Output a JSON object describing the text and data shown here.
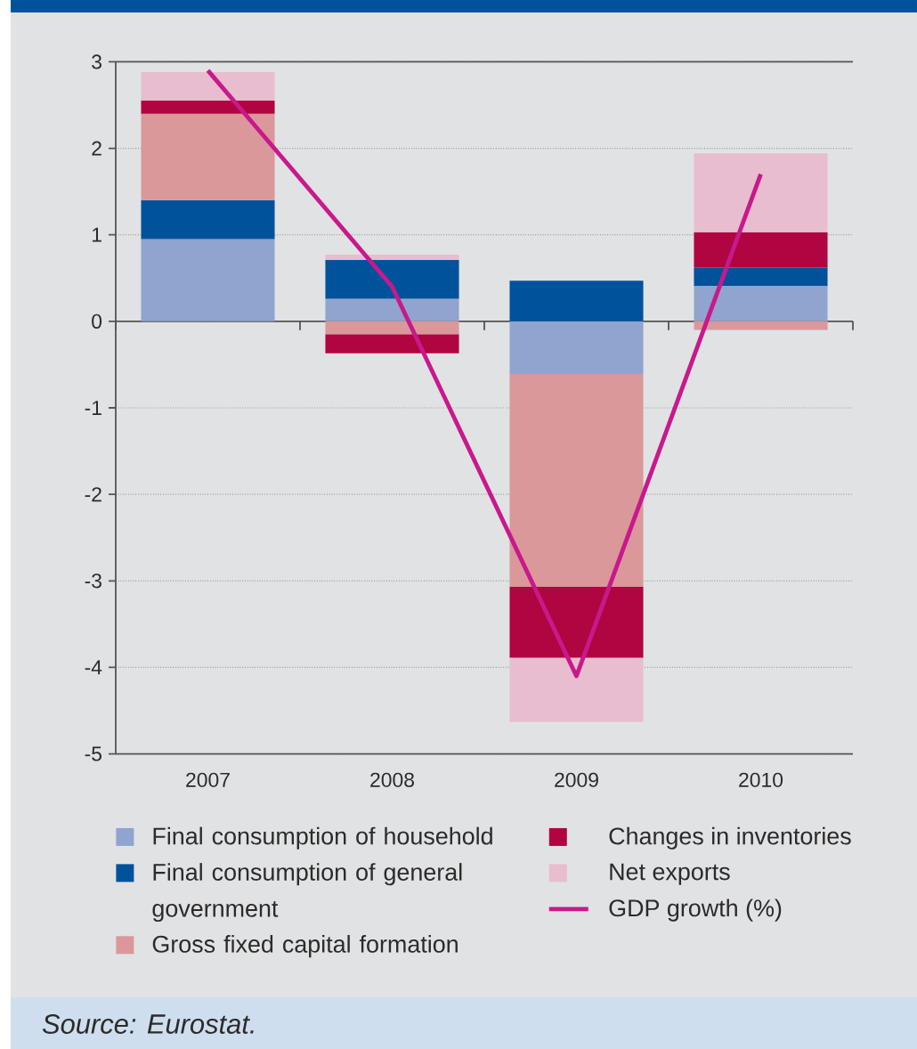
{
  "chart_data": {
    "type": "bar",
    "stacked": true,
    "categories": [
      "2007",
      "2008",
      "2009",
      "2010"
    ],
    "series": [
      {
        "name": "Final consumption of household",
        "color": "#90a4cf",
        "values": [
          0.95,
          0.26,
          -0.61,
          0.41
        ]
      },
      {
        "name": "Final consumption of general government",
        "color": "#00529b",
        "values": [
          0.45,
          0.45,
          0.47,
          0.21
        ]
      },
      {
        "name": "Gross fixed capital formation",
        "color": "#da989a",
        "values": [
          1.0,
          -0.15,
          -2.46,
          -0.1
        ]
      },
      {
        "name": "Changes in inventories",
        "color": "#b00540",
        "values": [
          0.15,
          -0.22,
          -0.82,
          0.41
        ]
      },
      {
        "name": "Net exports",
        "color": "#e8bdd0",
        "values": [
          0.33,
          0.06,
          -0.74,
          0.91
        ]
      },
      {
        "name": "GDP growth (%)",
        "type": "line",
        "color": "#c8198c",
        "values": [
          2.9,
          0.4,
          -4.1,
          1.7
        ]
      }
    ],
    "ylim": [
      -5,
      3
    ],
    "yticks": [
      -5,
      -4,
      -3,
      -2,
      -1,
      0,
      1,
      2,
      3
    ],
    "grid": "y",
    "legend": "bottom",
    "annotations": [
      "Source: Eurostat."
    ]
  }
}
